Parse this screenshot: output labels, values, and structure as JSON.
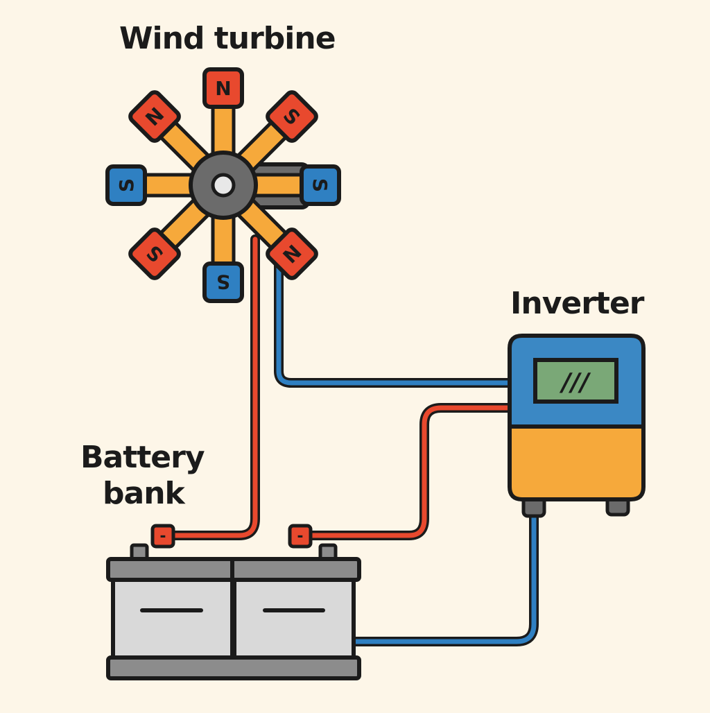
{
  "labels": {
    "wind_turbine": "Wind turbine",
    "inverter": "Inverter",
    "battery_line1": "Battery",
    "battery_line2": "bank"
  },
  "turbine": {
    "magnets": [
      {
        "pole": "N",
        "color": "#e8492e"
      },
      {
        "pole": "S",
        "color": "#e8492e"
      },
      {
        "pole": "S",
        "color": "#2f80c2"
      },
      {
        "pole": "N",
        "color": "#e8492e"
      },
      {
        "pole": "S",
        "color": "#2f80c2"
      },
      {
        "pole": "S",
        "color": "#e8492e"
      },
      {
        "pole": "S",
        "color": "#2f80c2"
      },
      {
        "pole": "N",
        "color": "#e8492e"
      }
    ]
  },
  "battery": {
    "terminals": [
      "-",
      "-"
    ]
  },
  "inverter": {
    "display": "///"
  },
  "colors": {
    "background": "#fdf6e8",
    "wire_positive": "#e8492e",
    "wire_negative": "#2f80c2",
    "arm": "#f6a93b",
    "hub": "#6b6b6b",
    "battery_case": "#d9d9d9",
    "battery_lid": "#8c8c8c",
    "inverter_top": "#3b88c4",
    "inverter_bottom": "#f6a93b",
    "display_screen": "#7aa877",
    "outline": "#1b1b1b"
  }
}
